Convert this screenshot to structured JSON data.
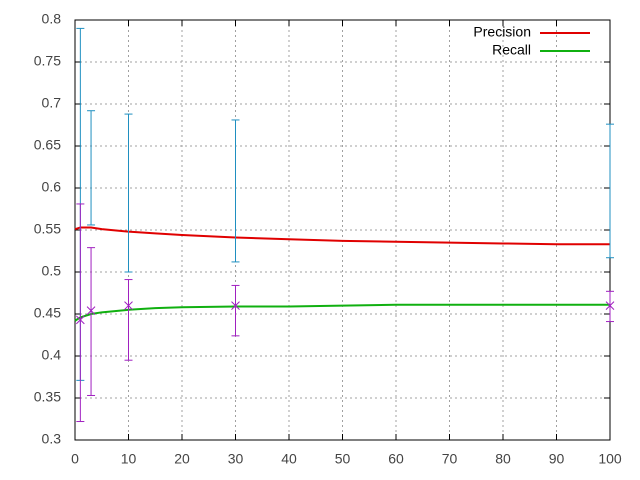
{
  "chart_data": {
    "type": "line",
    "xlim": [
      0,
      100
    ],
    "xticks": [
      0,
      10,
      20,
      30,
      40,
      50,
      60,
      70,
      80,
      90,
      100
    ],
    "ylim": [
      0.3,
      0.8
    ],
    "yticks": [
      0.3,
      0.35,
      0.4,
      0.45,
      0.5,
      0.55,
      0.6,
      0.65,
      0.7,
      0.75,
      0.8
    ],
    "grid": true,
    "legend": "top-right",
    "series": [
      {
        "name": "Precision",
        "color": "#e00000",
        "x": [
          0,
          1,
          3,
          5,
          10,
          15,
          20,
          30,
          40,
          50,
          60,
          70,
          80,
          90,
          100
        ],
        "values": [
          0.551,
          0.553,
          0.553,
          0.551,
          0.548,
          0.546,
          0.544,
          0.541,
          0.539,
          0.537,
          0.536,
          0.535,
          0.534,
          0.533,
          0.533
        ],
        "error_color": "#1f8fc0",
        "error_x": [
          1,
          3,
          10,
          30,
          100
        ],
        "error_low": [
          0.371,
          0.556,
          0.5,
          0.512,
          0.517
        ],
        "error_high": [
          0.79,
          0.692,
          0.688,
          0.681,
          0.676
        ]
      },
      {
        "name": "Recall",
        "color": "#10b010",
        "x": [
          0,
          1,
          3,
          5,
          10,
          15,
          20,
          30,
          40,
          50,
          60,
          70,
          80,
          90,
          100
        ],
        "values": [
          0.442,
          0.446,
          0.45,
          0.452,
          0.455,
          0.457,
          0.458,
          0.459,
          0.459,
          0.46,
          0.461,
          0.461,
          0.461,
          0.461,
          0.461
        ],
        "error_color": "#a020c0",
        "error_x": [
          1,
          3,
          10,
          30,
          100
        ],
        "error_mid": [
          0.443,
          0.454,
          0.46,
          0.46,
          0.46
        ],
        "error_low": [
          0.322,
          0.353,
          0.395,
          0.424,
          0.441
        ],
        "error_high": [
          0.581,
          0.529,
          0.491,
          0.484,
          0.477
        ]
      }
    ]
  }
}
